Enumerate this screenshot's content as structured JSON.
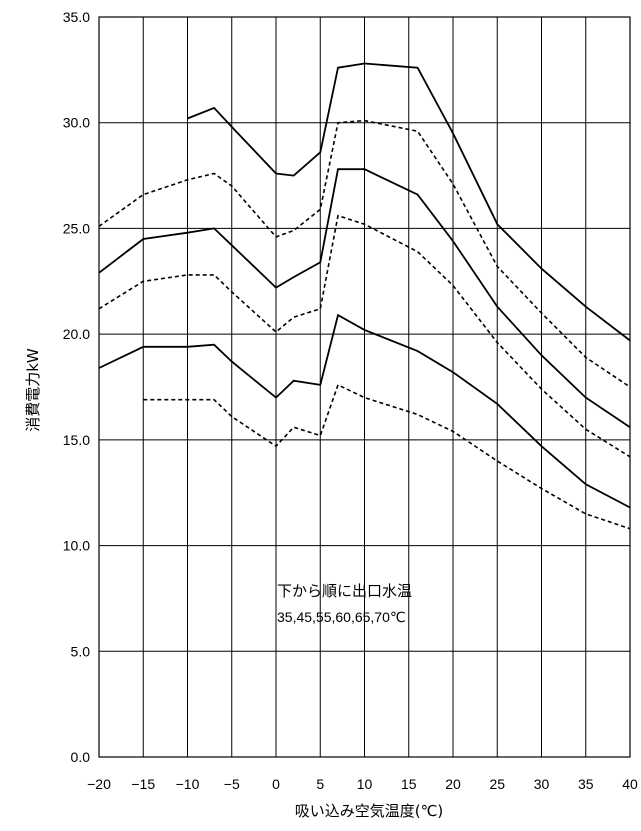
{
  "chart_data": {
    "type": "line",
    "xlabel": "吸い込み空気温度(℃)",
    "ylabel": "消費電力kW",
    "xlim": [
      -20,
      40
    ],
    "ylim": [
      0,
      35
    ],
    "x_ticks": [
      "−20",
      "−15",
      "−10",
      "−5",
      "0",
      "5",
      "10",
      "15",
      "20",
      "25",
      "30",
      "35",
      "40"
    ],
    "y_ticks": [
      "0.0",
      "5.0",
      "10.0",
      "15.0",
      "20.0",
      "25.0",
      "30.0",
      "35.0"
    ],
    "grid": true,
    "annotation": {
      "line1": "下から順に出口水温",
      "line2": "35,45,55,60,65,70℃"
    },
    "series": [
      {
        "style": "dashed",
        "x": [
          -15,
          -7,
          -5,
          0,
          2,
          5,
          7,
          10,
          16,
          20,
          25,
          30,
          35,
          40
        ],
        "y": [
          16.9,
          16.9,
          16.1,
          14.7,
          15.6,
          15.2,
          17.6,
          17.0,
          16.2,
          15.4,
          14.0,
          12.7,
          11.5,
          10.8
        ]
      },
      {
        "style": "solid",
        "x": [
          -20,
          -15,
          -10,
          -7,
          -5,
          0,
          2,
          5,
          7,
          10,
          16,
          20,
          25,
          30,
          35,
          40
        ],
        "y": [
          18.4,
          19.4,
          19.4,
          19.5,
          18.7,
          17.0,
          17.8,
          17.6,
          20.9,
          20.2,
          19.2,
          18.2,
          16.7,
          14.7,
          12.9,
          11.8
        ]
      },
      {
        "style": "dashed",
        "x": [
          -20,
          -15,
          -10,
          -7,
          -5,
          0,
          2,
          5,
          7,
          10,
          16,
          20,
          25,
          30,
          35,
          40
        ],
        "y": [
          21.2,
          22.5,
          22.8,
          22.8,
          22.0,
          20.1,
          20.8,
          21.2,
          25.6,
          25.2,
          23.9,
          22.3,
          19.6,
          17.4,
          15.5,
          14.2
        ]
      },
      {
        "style": "solid",
        "x": [
          -20,
          -15,
          -10,
          -7,
          -5,
          0,
          2,
          5,
          7,
          10,
          16,
          20,
          25,
          30,
          35,
          40
        ],
        "y": [
          22.9,
          24.5,
          24.8,
          25.0,
          24.2,
          22.2,
          22.7,
          23.4,
          27.8,
          27.8,
          26.6,
          24.4,
          21.3,
          19.0,
          17.0,
          15.6
        ]
      },
      {
        "style": "dashed",
        "x": [
          -20,
          -15,
          -10,
          -7,
          -5,
          0,
          2,
          5,
          7,
          10,
          16,
          20,
          25,
          30,
          35,
          40
        ],
        "y": [
          25.1,
          26.6,
          27.3,
          27.6,
          27.0,
          24.6,
          24.9,
          25.9,
          30.0,
          30.1,
          29.6,
          27.1,
          23.2,
          21.0,
          18.9,
          17.5
        ]
      },
      {
        "style": "solid",
        "x": [
          -10,
          -7,
          -5,
          0,
          2,
          5,
          7,
          10,
          16,
          20,
          25,
          30,
          35,
          40
        ],
        "y": [
          30.2,
          30.7,
          29.8,
          27.6,
          27.5,
          28.6,
          32.6,
          32.8,
          32.6,
          29.5,
          25.2,
          23.1,
          21.3,
          19.7
        ]
      }
    ]
  }
}
